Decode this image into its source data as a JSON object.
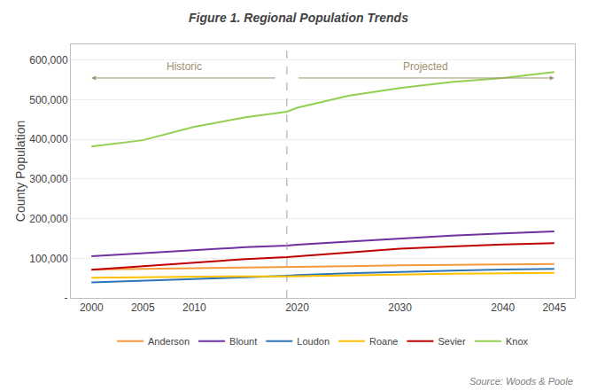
{
  "chart_data": {
    "type": "line",
    "title": "Figure 1. Regional Population Trends",
    "y_label": "County Population",
    "source": "Source: Woods & Poole",
    "x": [
      2000,
      2005,
      2010,
      2015,
      2019,
      2020,
      2025,
      2030,
      2035,
      2040,
      2045
    ],
    "series": [
      {
        "name": "Anderson",
        "color": "#f4993a",
        "values": [
          71330,
          72500,
          75000,
          76500,
          77500,
          78000,
          80000,
          82000,
          83500,
          84500,
          85500
        ]
      },
      {
        "name": "Blount",
        "color": "#7030a0",
        "values": [
          105000,
          113000,
          120000,
          128000,
          132000,
          134000,
          142000,
          150000,
          157000,
          163000,
          168000
        ]
      },
      {
        "name": "Loudon",
        "color": "#2e75b6",
        "values": [
          39000,
          43000,
          48000,
          52000,
          56000,
          57500,
          62000,
          66000,
          69000,
          71500,
          73500
        ]
      },
      {
        "name": "Roane",
        "color": "#ffc000",
        "values": [
          51000,
          52500,
          54000,
          54500,
          54000,
          54500,
          57000,
          59000,
          61000,
          62000,
          63000
        ]
      },
      {
        "name": "Sevier",
        "color": "#c00000",
        "values": [
          71000,
          80000,
          90000,
          98000,
          103000,
          105000,
          115000,
          124000,
          130000,
          135000,
          138000
        ]
      },
      {
        "name": "Knox",
        "color": "#92d050",
        "values": [
          382000,
          398000,
          432000,
          456000,
          470000,
          480000,
          510000,
          530000,
          545000,
          555000,
          570000
        ]
      }
    ],
    "divider_x": 2019,
    "annotations": [
      {
        "text": "Historic",
        "x": [
          2018,
          2000
        ],
        "y": 555000,
        "color": "#a09070"
      },
      {
        "text": "Projected",
        "x": [
          2020,
          2045
        ],
        "y": 555000,
        "color": "#a09070"
      }
    ],
    "xlim": [
      1998,
      2047
    ],
    "xticks": [
      2000,
      2005,
      2010,
      2020,
      2030,
      2040,
      2045
    ],
    "ylim": [
      0,
      640000
    ],
    "yticks": [
      {
        "value": 0,
        "label": "-"
      },
      {
        "value": 100000,
        "label": "100,000"
      },
      {
        "value": 200000,
        "label": "200,000"
      },
      {
        "value": 300000,
        "label": "300,000"
      },
      {
        "value": 400000,
        "label": "400,000"
      },
      {
        "value": 500000,
        "label": "500,000"
      },
      {
        "value": 600000,
        "label": "600,000"
      }
    ],
    "grid": true,
    "legend": "bottom"
  }
}
